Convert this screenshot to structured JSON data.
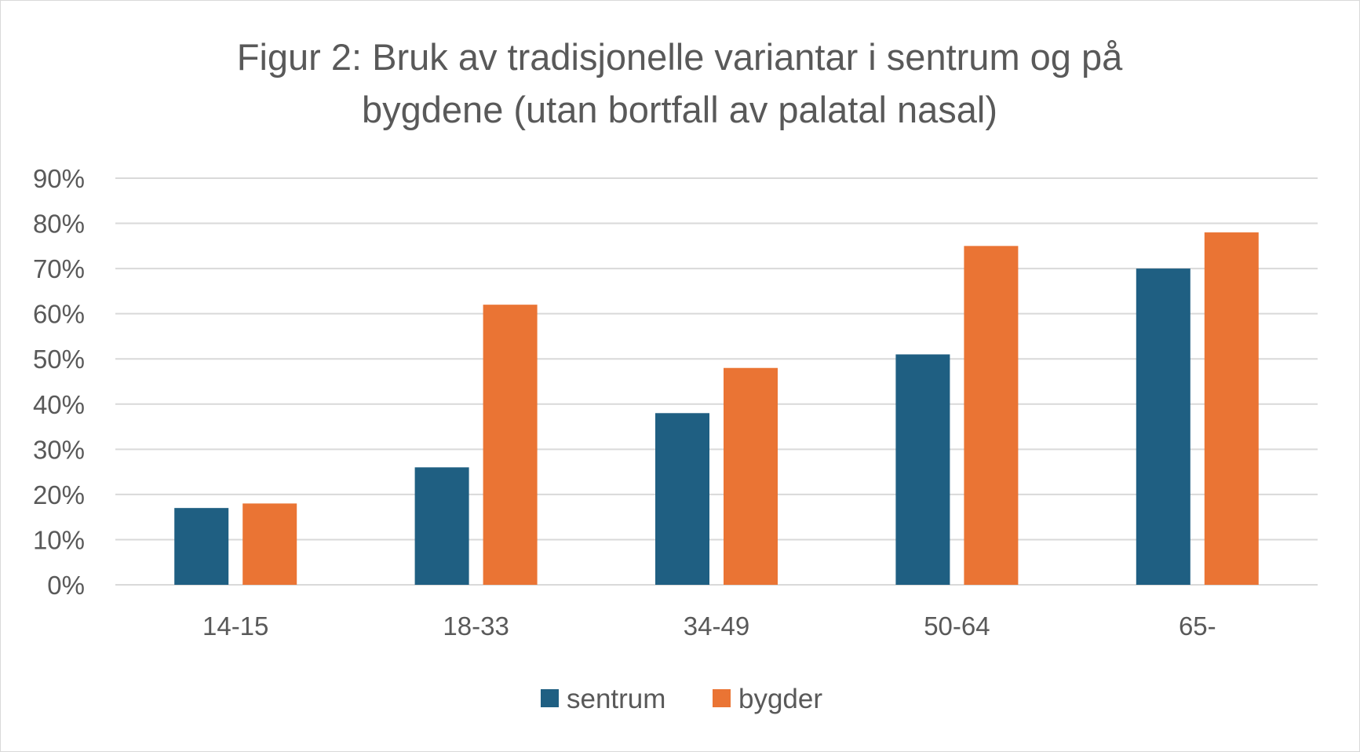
{
  "chart_data": {
    "type": "bar",
    "title_lines": [
      "Figur 2: Bruk av tradisjonelle variantar i sentrum og på",
      "bygdene (utan bortfall av palatal nasal)"
    ],
    "categories": [
      "14-15",
      "18-33",
      "34-49",
      "50-64",
      "65-"
    ],
    "series": [
      {
        "name": "sentrum",
        "color": "#1f5f82",
        "values": [
          0.17,
          0.26,
          0.38,
          0.51,
          0.7
        ]
      },
      {
        "name": "bygder",
        "color": "#ea7434",
        "values": [
          0.18,
          0.62,
          0.48,
          0.75,
          0.78
        ]
      }
    ],
    "ylim": [
      0,
      0.9
    ],
    "yticks": [
      0,
      0.1,
      0.2,
      0.3,
      0.4,
      0.5,
      0.6,
      0.7,
      0.8,
      0.9
    ],
    "ytick_labels": [
      "0%",
      "10%",
      "20%",
      "30%",
      "40%",
      "50%",
      "60%",
      "70%",
      "80%",
      "90%"
    ],
    "xlabel": "",
    "ylabel": "",
    "grid": true,
    "legend": "bottom-center"
  }
}
